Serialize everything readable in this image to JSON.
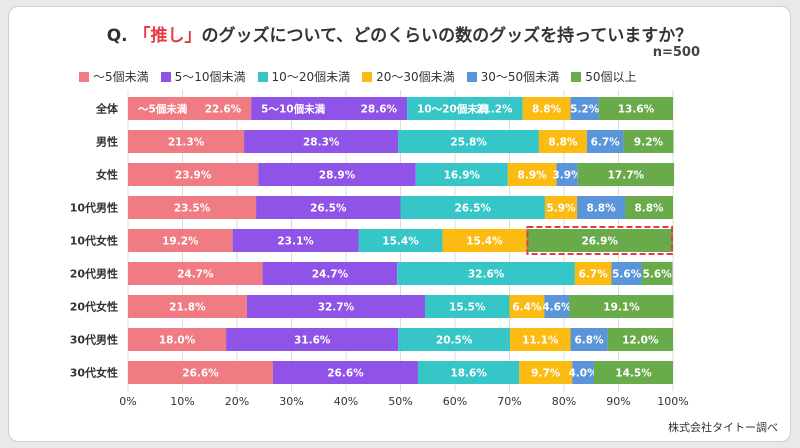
{
  "title": {
    "prefix": "Q. ",
    "accent": "「推し」",
    "rest": "のグッズについて、どのくらいの数のグッズを持っていますか？"
  },
  "n_label": "n=500",
  "source": "株式会社タイトー調べ",
  "chart_data": {
    "type": "bar",
    "orientation": "horizontal",
    "stacked": true,
    "percent": true,
    "categories": [
      "全体",
      "男性",
      "女性",
      "10代男性",
      "10代女性",
      "20代男性",
      "20代女性",
      "30代男性",
      "30代女性"
    ],
    "series": [
      {
        "name": "〜5個未満",
        "color": "#f07b83",
        "values": [
          22.6,
          21.3,
          23.9,
          23.5,
          19.2,
          24.7,
          21.8,
          18.0,
          26.6
        ]
      },
      {
        "name": "5〜10個未満",
        "color": "#8f53e8",
        "values": [
          28.6,
          28.3,
          28.9,
          26.5,
          23.1,
          24.7,
          32.7,
          31.6,
          26.6
        ]
      },
      {
        "name": "10〜20個未満",
        "color": "#36c6c8",
        "values": [
          21.2,
          25.8,
          16.9,
          26.5,
          15.4,
          32.6,
          15.5,
          20.5,
          18.6
        ]
      },
      {
        "name": "20〜30個未満",
        "color": "#fbbb12",
        "values": [
          8.8,
          8.8,
          8.9,
          5.9,
          15.4,
          6.7,
          6.4,
          11.1,
          9.7
        ]
      },
      {
        "name": "30〜50個未満",
        "color": "#5a95d9",
        "values": [
          5.2,
          6.7,
          3.9,
          8.8,
          0,
          5.6,
          4.6,
          6.8,
          4.0
        ]
      },
      {
        "name": "50個以上",
        "color": "#69ab4a",
        "values": [
          13.6,
          9.2,
          17.7,
          8.8,
          26.9,
          5.6,
          19.1,
          12.0,
          14.5
        ]
      }
    ],
    "first_row_label_prefixes": [
      "〜5個未満",
      "5〜10個未満",
      "10〜20個未満"
    ],
    "highlight": {
      "category": "10代女性",
      "series": "50個以上"
    },
    "xlim": [
      0,
      100
    ],
    "xticks": [
      "0%",
      "10%",
      "20%",
      "30%",
      "40%",
      "50%",
      "60%",
      "70%",
      "80%",
      "90%",
      "100%"
    ],
    "grid": true,
    "legend_position": "top"
  }
}
